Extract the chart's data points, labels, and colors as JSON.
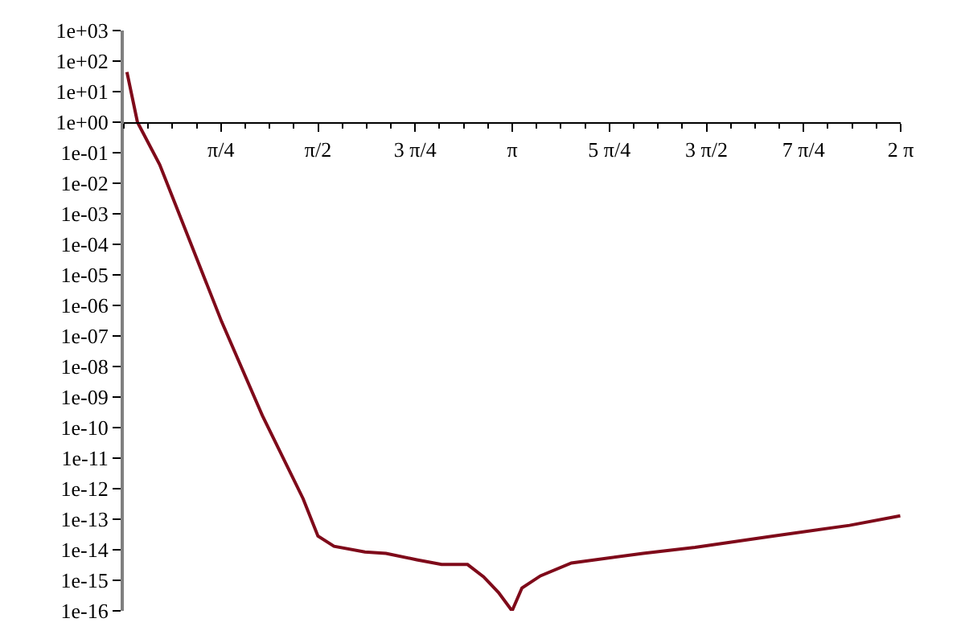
{
  "chart_data": {
    "type": "line",
    "x": [
      0.025,
      0.11,
      0.29,
      0.79,
      1.12,
      1.45,
      1.57,
      1.7,
      1.95,
      2.12,
      2.37,
      2.57,
      2.66,
      2.78,
      2.91,
      3.03,
      3.14,
      3.22,
      3.37,
      3.62,
      4.2,
      4.62,
      5.25,
      5.87,
      6.28
    ],
    "series": [
      {
        "color": "#7f0a1a",
        "values": [
          44,
          1.0,
          0.041,
          3e-07,
          2.5e-10,
          4.7e-13,
          2.8e-14,
          1.3e-14,
          8.5e-15,
          7.6e-15,
          4.7e-15,
          3.3e-15,
          3.3e-15,
          3.3e-15,
          1.3e-15,
          4e-16,
          1e-16,
          5.6e-16,
          1.4e-15,
          3.7e-15,
          7.6e-15,
          1.2e-14,
          2.8e-14,
          6.3e-14,
          1.3e-13
        ]
      }
    ],
    "log": true,
    "xlim": [
      0,
      6.2832
    ],
    "xticks": [
      {
        "value": 0.7854,
        "label": "π/4"
      },
      {
        "value": 1.5708,
        "label": "π/2"
      },
      {
        "value": 2.3562,
        "label": "3 π/4"
      },
      {
        "value": 3.1416,
        "label": "π"
      },
      {
        "value": 3.927,
        "label": "5 π/4"
      },
      {
        "value": 4.7124,
        "label": "3 π/2"
      },
      {
        "value": 5.4978,
        "label": "7 π/4"
      },
      {
        "value": 6.2832,
        "label": "2 π"
      }
    ],
    "ylim": [
      1e-16,
      1000.0
    ],
    "yticks": [
      {
        "value": 1000.0,
        "label": "1e+03"
      },
      {
        "value": 100.0,
        "label": "1e+02"
      },
      {
        "value": 10.0,
        "label": "1e+01"
      },
      {
        "value": 1,
        "label": "1e+00"
      },
      {
        "value": 0.1,
        "label": "1e-01"
      },
      {
        "value": 0.01,
        "label": "1e-02"
      },
      {
        "value": 0.001,
        "label": "1e-03"
      },
      {
        "value": 0.0001,
        "label": "1e-04"
      },
      {
        "value": 1e-05,
        "label": "1e-05"
      },
      {
        "value": 1e-06,
        "label": "1e-06"
      },
      {
        "value": 1e-07,
        "label": "1e-07"
      },
      {
        "value": 1e-08,
        "label": "1e-08"
      },
      {
        "value": 1e-09,
        "label": "1e-09"
      },
      {
        "value": 1e-10,
        "label": "1e-10"
      },
      {
        "value": 1e-11,
        "label": "1e-11"
      },
      {
        "value": 1e-12,
        "label": "1e-12"
      },
      {
        "value": 1e-13,
        "label": "1e-13"
      },
      {
        "value": 1e-14,
        "label": "1e-14"
      },
      {
        "value": 1e-15,
        "label": "1e-15"
      },
      {
        "value": 1e-16,
        "label": "1e-16"
      }
    ]
  }
}
